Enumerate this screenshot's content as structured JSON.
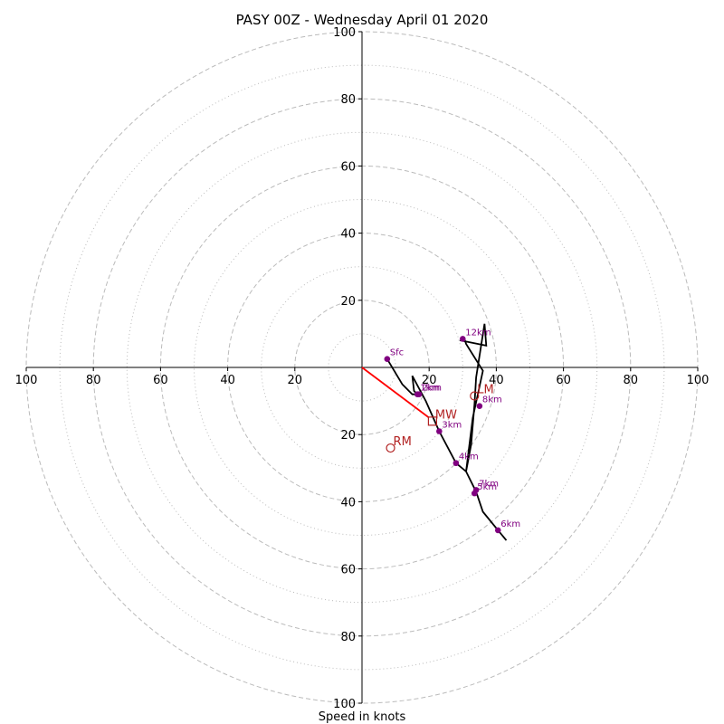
{
  "chart_data": {
    "type": "hodograph",
    "title": "PASY 00Z - Wednesday April 01 2020",
    "xlabel": "Speed in knots",
    "range": [
      -100,
      100
    ],
    "rings_major": [
      20,
      40,
      60,
      80,
      100
    ],
    "rings_minor": [
      10,
      30,
      50,
      70,
      90
    ],
    "tick_labels": {
      "top": [
        "20",
        "40",
        "60",
        "80",
        "100"
      ],
      "bottom": [
        "20",
        "40",
        "60",
        "80",
        "100"
      ],
      "left": [
        "20",
        "40",
        "60",
        "80",
        "100"
      ],
      "right": [
        "20",
        "40",
        "60",
        "80",
        "100"
      ]
    },
    "tick_values": [
      20,
      40,
      60,
      80,
      100
    ],
    "colors": {
      "trace": "#000000",
      "height_points": "#800080",
      "motion": "#b22222",
      "mean_wind_vector": "#ff0000",
      "rings": "#bbbbbb"
    },
    "trace": [
      [
        7.5,
        2.5
      ],
      [
        12,
        -5
      ],
      [
        15,
        -8
      ],
      [
        16.5,
        -8
      ],
      [
        15.5,
        -7
      ],
      [
        15,
        -2.5
      ],
      [
        19,
        -10
      ],
      [
        23,
        -19
      ],
      [
        28,
        -28.5
      ],
      [
        31,
        -31
      ],
      [
        32.5,
        -23
      ],
      [
        33.5,
        -11
      ],
      [
        34,
        -3
      ],
      [
        36.5,
        13
      ],
      [
        37,
        6.5
      ],
      [
        29.5,
        8
      ],
      [
        30,
        8.5
      ],
      [
        30.5,
        8.5
      ],
      [
        31,
        7
      ],
      [
        36,
        -1
      ],
      [
        33,
        -15
      ],
      [
        31,
        -31
      ],
      [
        34,
        -37
      ],
      [
        36,
        -43
      ],
      [
        40.5,
        -48.5
      ],
      [
        43,
        -51.5
      ]
    ],
    "height_points": [
      {
        "label": "Sfc",
        "u": 7.5,
        "v": 2.5
      },
      {
        "label": "1km",
        "u": 16.5,
        "v": -8
      },
      {
        "label": "2km",
        "u": 17,
        "v": -8
      },
      {
        "label": "3km",
        "u": 23,
        "v": -19
      },
      {
        "label": "4km",
        "u": 28,
        "v": -28.5
      },
      {
        "label": "5km",
        "u": 33.5,
        "v": -37.5
      },
      {
        "label": "6km",
        "u": 40.5,
        "v": -48.5
      },
      {
        "label": "7km",
        "u": 34,
        "v": -36.5
      },
      {
        "label": "8km",
        "u": 35,
        "v": -11.5
      },
      {
        "label": "12km",
        "u": 30,
        "v": 8.5
      }
    ],
    "motions": {
      "LM": {
        "label": "LM",
        "u": 33.5,
        "v": -8.5
      },
      "RM": {
        "label": "RM",
        "u": 8.5,
        "v": -24
      },
      "MW": {
        "label": "MW",
        "u": 21,
        "v": -16
      }
    },
    "mean_wind_vector": {
      "u": 20,
      "v": -15
    }
  }
}
